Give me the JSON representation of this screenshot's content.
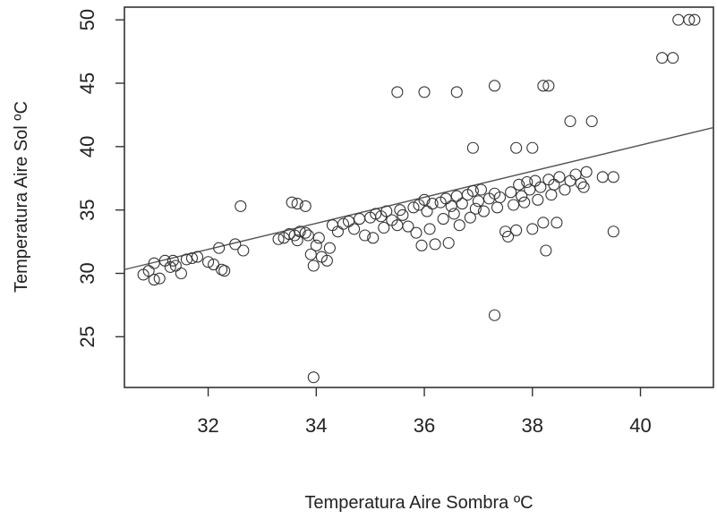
{
  "chart_data": {
    "type": "scatter",
    "title": "",
    "xlabel": "Temperatura Aire Sombra ºC",
    "ylabel": "Temperatura Aire Sol ºC",
    "xlim": [
      30.45,
      41.35
    ],
    "ylim": [
      21.0,
      51.0
    ],
    "xticks": [
      32,
      34,
      36,
      38,
      40
    ],
    "yticks": [
      25,
      30,
      35,
      40,
      45,
      50
    ],
    "grid": false,
    "legend": "none",
    "marker": "open-circle",
    "colors": {
      "points": "#333333",
      "line": "#555555",
      "axes": "#333333"
    },
    "fit_line": {
      "x": [
        30.45,
        41.35
      ],
      "y": [
        30.3,
        41.5
      ]
    },
    "points": [
      [
        30.8,
        29.9
      ],
      [
        30.9,
        30.2
      ],
      [
        31.0,
        30.8
      ],
      [
        31.0,
        29.5
      ],
      [
        31.1,
        29.6
      ],
      [
        31.2,
        31.0
      ],
      [
        31.3,
        30.5
      ],
      [
        31.35,
        31.0
      ],
      [
        31.4,
        30.6
      ],
      [
        31.5,
        30.0
      ],
      [
        31.6,
        31.1
      ],
      [
        31.7,
        31.2
      ],
      [
        31.8,
        31.3
      ],
      [
        32.0,
        30.9
      ],
      [
        32.1,
        30.7
      ],
      [
        32.2,
        32.0
      ],
      [
        32.25,
        30.3
      ],
      [
        32.3,
        30.2
      ],
      [
        32.5,
        32.3
      ],
      [
        32.6,
        35.3
      ],
      [
        32.65,
        31.8
      ],
      [
        33.3,
        32.7
      ],
      [
        33.4,
        32.8
      ],
      [
        33.5,
        33.1
      ],
      [
        33.6,
        33.0
      ],
      [
        33.65,
        32.6
      ],
      [
        33.7,
        33.3
      ],
      [
        33.8,
        33.2
      ],
      [
        33.85,
        33.0
      ],
      [
        33.9,
        31.5
      ],
      [
        33.95,
        30.6
      ],
      [
        34.0,
        32.2
      ],
      [
        34.05,
        32.8
      ],
      [
        34.1,
        31.3
      ],
      [
        34.2,
        31.0
      ],
      [
        34.25,
        32.0
      ],
      [
        33.55,
        35.6
      ],
      [
        33.65,
        35.5
      ],
      [
        33.8,
        35.3
      ],
      [
        33.95,
        21.8
      ],
      [
        34.3,
        33.8
      ],
      [
        34.4,
        33.3
      ],
      [
        34.5,
        33.9
      ],
      [
        34.6,
        34.1
      ],
      [
        34.7,
        33.5
      ],
      [
        34.8,
        34.3
      ],
      [
        34.9,
        33.0
      ],
      [
        35.0,
        34.4
      ],
      [
        35.05,
        32.8
      ],
      [
        35.1,
        34.7
      ],
      [
        35.2,
        34.5
      ],
      [
        35.25,
        33.6
      ],
      [
        35.3,
        34.9
      ],
      [
        35.4,
        34.2
      ],
      [
        35.5,
        33.8
      ],
      [
        35.55,
        35.0
      ],
      [
        35.6,
        34.6
      ],
      [
        35.7,
        33.7
      ],
      [
        35.8,
        35.2
      ],
      [
        35.85,
        33.2
      ],
      [
        35.9,
        35.4
      ],
      [
        35.95,
        32.2
      ],
      [
        36.0,
        35.8
      ],
      [
        36.05,
        34.9
      ],
      [
        36.1,
        33.5
      ],
      [
        36.15,
        35.5
      ],
      [
        36.2,
        32.3
      ],
      [
        36.3,
        35.6
      ],
      [
        36.35,
        34.3
      ],
      [
        36.4,
        35.9
      ],
      [
        36.45,
        32.4
      ],
      [
        36.5,
        35.3
      ],
      [
        36.55,
        34.7
      ],
      [
        36.6,
        36.1
      ],
      [
        36.65,
        33.8
      ],
      [
        36.7,
        35.5
      ],
      [
        36.8,
        36.2
      ],
      [
        36.85,
        34.4
      ],
      [
        36.9,
        36.5
      ],
      [
        36.95,
        35.1
      ],
      [
        37.0,
        35.7
      ],
      [
        37.05,
        36.6
      ],
      [
        37.1,
        34.9
      ],
      [
        37.2,
        35.9
      ],
      [
        37.3,
        36.3
      ],
      [
        37.35,
        35.2
      ],
      [
        37.4,
        36.0
      ],
      [
        37.5,
        33.3
      ],
      [
        37.55,
        32.9
      ],
      [
        37.6,
        36.4
      ],
      [
        37.65,
        35.4
      ],
      [
        37.7,
        33.4
      ],
      [
        37.75,
        37.0
      ],
      [
        37.8,
        36.1
      ],
      [
        37.85,
        35.6
      ],
      [
        37.9,
        37.2
      ],
      [
        37.95,
        36.6
      ],
      [
        38.0,
        33.5
      ],
      [
        38.05,
        37.3
      ],
      [
        38.1,
        35.8
      ],
      [
        38.15,
        36.8
      ],
      [
        38.2,
        34.0
      ],
      [
        38.25,
        31.8
      ],
      [
        38.3,
        37.4
      ],
      [
        38.35,
        36.2
      ],
      [
        38.4,
        37.0
      ],
      [
        38.45,
        34.0
      ],
      [
        38.5,
        37.6
      ],
      [
        38.6,
        36.6
      ],
      [
        38.7,
        37.3
      ],
      [
        38.8,
        37.8
      ],
      [
        38.9,
        37.1
      ],
      [
        38.95,
        36.8
      ],
      [
        39.0,
        38.0
      ],
      [
        39.3,
        37.6
      ],
      [
        39.5,
        37.6
      ],
      [
        39.5,
        33.3
      ],
      [
        37.3,
        26.7
      ],
      [
        35.5,
        44.3
      ],
      [
        36.0,
        44.3
      ],
      [
        36.6,
        44.3
      ],
      [
        37.3,
        44.8
      ],
      [
        38.2,
        44.8
      ],
      [
        38.3,
        44.8
      ],
      [
        36.9,
        39.9
      ],
      [
        37.7,
        39.9
      ],
      [
        38.0,
        39.9
      ],
      [
        38.7,
        42.0
      ],
      [
        39.1,
        42.0
      ],
      [
        40.4,
        47.0
      ],
      [
        40.6,
        47.0
      ],
      [
        40.7,
        50.0
      ],
      [
        40.9,
        50.0
      ],
      [
        41.0,
        50.0
      ]
    ]
  }
}
